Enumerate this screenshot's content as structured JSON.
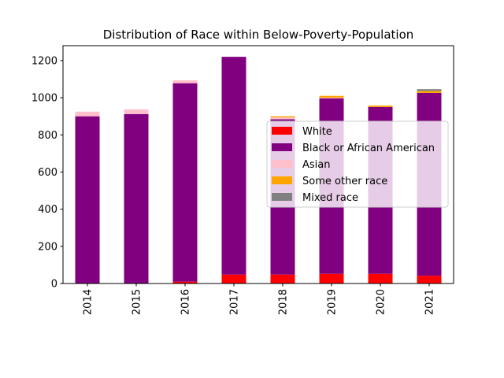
{
  "chart_data": {
    "type": "bar",
    "stacked": true,
    "title": "Distribution of Race within Below-Poverty-Population",
    "xlabel": "",
    "ylabel": "",
    "categories": [
      "2014",
      "2015",
      "2016",
      "2017",
      "2018",
      "2019",
      "2020",
      "2021"
    ],
    "ylim": [
      0,
      1280
    ],
    "yticks": [
      0,
      200,
      400,
      600,
      800,
      1000,
      1200
    ],
    "grid": false,
    "legend_position": "center-right",
    "series": [
      {
        "name": "White",
        "color": "#ff0000",
        "values": [
          0,
          0,
          10,
          48,
          48,
          52,
          52,
          42
        ]
      },
      {
        "name": "Black or African American",
        "color": "#800080",
        "values": [
          900,
          912,
          1068,
          1172,
          836,
          944,
          898,
          984
        ]
      },
      {
        "name": "Asian",
        "color": "#ffc0cb",
        "values": [
          25,
          25,
          16,
          0,
          10,
          4,
          0,
          0
        ]
      },
      {
        "name": "Some other race",
        "color": "#ffa500",
        "values": [
          0,
          0,
          0,
          0,
          6,
          10,
          8,
          10
        ]
      },
      {
        "name": "Mixed race",
        "color": "#808080",
        "values": [
          0,
          0,
          0,
          0,
          0,
          0,
          0,
          10
        ]
      }
    ]
  }
}
